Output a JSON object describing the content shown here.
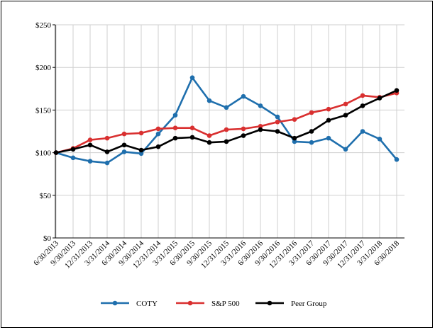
{
  "chart_data": {
    "type": "line",
    "title": "",
    "xlabel": "",
    "ylabel": "",
    "categories": [
      "6/30/2013",
      "9/30/2013",
      "12/31/2013",
      "3/31/2014",
      "6/30/2014",
      "9/30/2014",
      "12/31/2014",
      "3/31/2015",
      "6/30/2015",
      "9/30/2015",
      "12/31/2015",
      "3/31/2016",
      "6/30/2016",
      "9/30/2016",
      "12/31/2016",
      "3/31/2017",
      "6/30/2017",
      "9/30/2017",
      "12/31/2017",
      "3/31/2018",
      "6/30/2018"
    ],
    "ylim": [
      0,
      250
    ],
    "yticks": [
      0,
      50,
      100,
      150,
      200,
      250
    ],
    "ytick_labels": [
      "$0",
      "$50",
      "$100",
      "$150",
      "$200",
      "$250"
    ],
    "grid": true,
    "legend_position": "bottom",
    "series": [
      {
        "name": "COTY",
        "color": "#1f6fad",
        "values": [
          100,
          94,
          90,
          88,
          101,
          99,
          122,
          144,
          188,
          161,
          153,
          166,
          155,
          142,
          113,
          112,
          117,
          104,
          125,
          116,
          92
        ]
      },
      {
        "name": "S&P 500",
        "color": "#d93030",
        "values": [
          100,
          105,
          115,
          117,
          122,
          123,
          128,
          129,
          129,
          120,
          127,
          128,
          131,
          136,
          139,
          147,
          151,
          157,
          167,
          165,
          170
        ]
      },
      {
        "name": "Peer Group",
        "color": "#000000",
        "values": [
          100,
          104,
          109,
          101,
          109,
          103,
          107,
          117,
          118,
          112,
          113,
          120,
          127,
          125,
          117,
          125,
          138,
          144,
          155,
          164,
          173
        ]
      }
    ]
  }
}
